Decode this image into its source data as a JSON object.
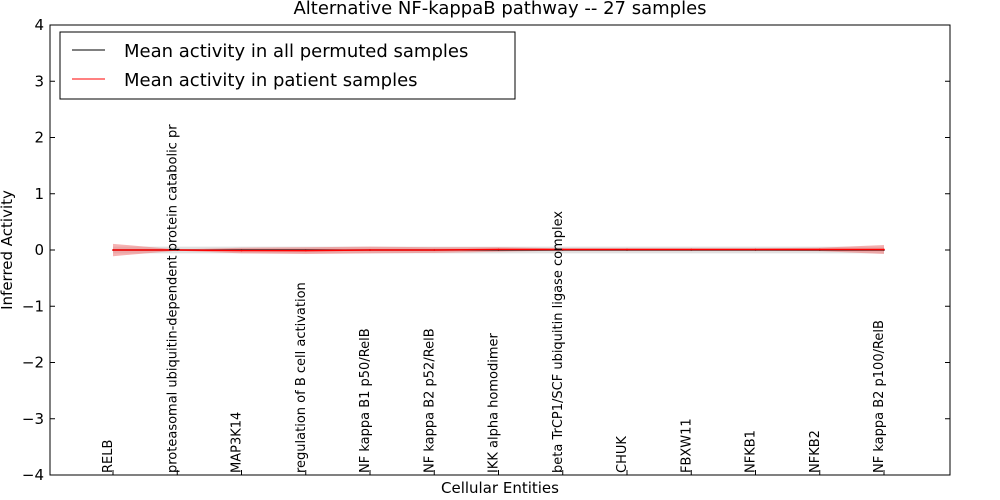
{
  "chart_data": {
    "type": "line",
    "title": "Alternative NF-kappaB pathway -- 27 samples",
    "xlabel": "Cellular Entities",
    "ylabel": "Inferred Activity",
    "ylim": [
      -4,
      4
    ],
    "yticks": [
      4,
      3,
      2,
      1,
      0,
      -1,
      -2,
      -3,
      -4
    ],
    "ytick_labels": [
      "4",
      "3",
      "2",
      "1",
      "0",
      "−1",
      "−2",
      "−3",
      "−4"
    ],
    "categories": [
      "RELB",
      "proteasomal ubiquitin-dependent protein catabolic pr",
      "MAP3K14",
      "regulation of B cell activation",
      "NF kappa B1 p50/RelB",
      "NF kappa B2 p52/RelB",
      "IKK alpha homodimer",
      "beta TrCP1/SCF ubiquitin ligase complex",
      "CHUK",
      "FBXW11",
      "NFKB1",
      "NFKB2",
      "NF kappa B2 p100/RelB"
    ],
    "legend_position": "top-left",
    "series": [
      {
        "name": "Mean activity in all permuted samples",
        "color": "#000000",
        "band_color": "#cccccc",
        "values": [
          0,
          0,
          0,
          0,
          0,
          0,
          0,
          0,
          0,
          0,
          0,
          0,
          0
        ],
        "band": [
          0.06,
          0.06,
          0.06,
          0.06,
          0.06,
          0.06,
          0.06,
          0.06,
          0.06,
          0.06,
          0.06,
          0.06,
          0.06
        ]
      },
      {
        "name": "Mean activity in patient samples",
        "color": "#ff0000",
        "band_color": "#f08080",
        "values": [
          0,
          0,
          -0.01,
          -0.01,
          0,
          0,
          0.01,
          0.01,
          0.01,
          0.01,
          0.01,
          0.01,
          0.01
        ],
        "band": [
          0.11,
          0.01,
          0.05,
          0.06,
          0.06,
          0.05,
          0.04,
          0.02,
          0.02,
          0.02,
          0.02,
          0.03,
          0.08
        ]
      }
    ],
    "grid": false
  }
}
